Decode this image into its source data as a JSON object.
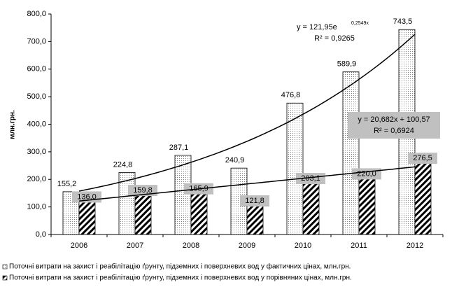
{
  "chart_data": {
    "type": "bar",
    "y_label": "млн.грн.",
    "categories": [
      "2006",
      "2007",
      "2008",
      "2009",
      "2010",
      "2011",
      "2012"
    ],
    "series": [
      {
        "name": "Поточні витрати на захист і реабілітацію ґрунту, підземних і поверхневих вод у фактичних цінах, млн.грн.",
        "pattern": "dots",
        "color": "#808080",
        "values": [
          155.2,
          224.8,
          287.1,
          240.9,
          476.8,
          589.9,
          743.5
        ],
        "value_labels": [
          "155,2",
          "224,8",
          "287,1",
          "240,9",
          "476,8",
          "589,9",
          "743,5"
        ]
      },
      {
        "name": "Поточні витрати на захист і реабілітацію ґрунту, підземних і поверхневих вод у порівняних цінах, млн.грн.",
        "pattern": "hatch",
        "color": "#000000",
        "values": [
          136.0,
          159.8,
          165.9,
          121.8,
          203.1,
          220.0,
          276.5
        ],
        "value_labels": [
          "136,0",
          "159,8",
          "165,9",
          "121,8",
          "203,1",
          "220,0",
          "276,5"
        ]
      }
    ],
    "ylim": [
      0,
      800
    ],
    "yticks": [
      {
        "value": 0,
        "label": "0,0"
      },
      {
        "value": 100,
        "label": "100,0"
      },
      {
        "value": 200,
        "label": "200,0"
      },
      {
        "value": 300,
        "label": "300,0"
      },
      {
        "value": 400,
        "label": "400,0"
      },
      {
        "value": 500,
        "label": "500,0"
      },
      {
        "value": 600,
        "label": "600,0"
      },
      {
        "value": 700,
        "label": "700,0"
      },
      {
        "value": 800,
        "label": "800,0"
      }
    ],
    "trendlines": [
      {
        "series": 0,
        "kind": "exponential",
        "coefficients": [
          121.95,
          0.2549
        ],
        "equation": "y = 121,95e",
        "exponent": "0,2549x",
        "r_squared": "R² = 0,9265"
      },
      {
        "series": 1,
        "kind": "linear",
        "coefficients": [
          20.682,
          100.57
        ],
        "equation": "y = 20,682x + 100,57",
        "r_squared": "R² = 0,6924"
      }
    ],
    "legend": "bottom"
  }
}
